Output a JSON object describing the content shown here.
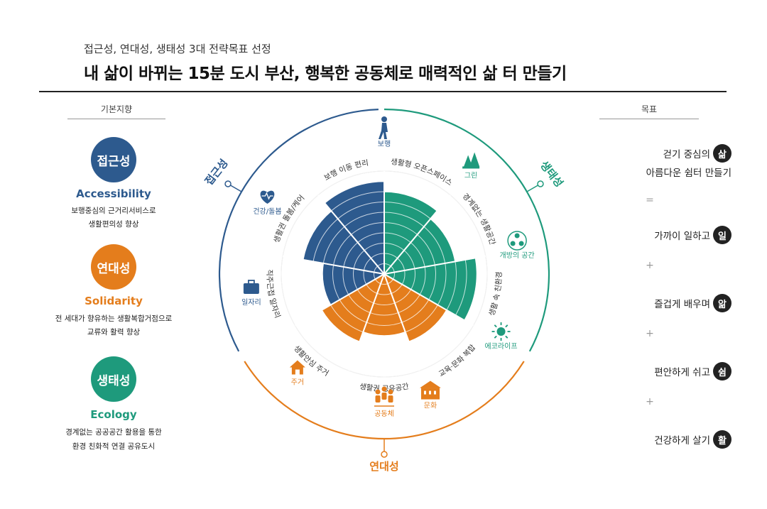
{
  "header": {
    "subtitle": "접근성, 연대성, 생태성 3대 전략목표 선정",
    "title": "내 삶이 바뀌는 15분 도시 부산, 행복한 공동체로 매력적인 삶 터 만들기"
  },
  "left": {
    "heading": "기본지향",
    "items": [
      {
        "badge": "접근성",
        "english": "Accessibility",
        "color": "#2d5a8e",
        "line1": "보행중심의 근거리서비스로",
        "line2": "생활편의성 향상"
      },
      {
        "badge": "연대성",
        "english": "Solidarity",
        "color": "#e47d1c",
        "line1": "전 세대가 향유하는 생활복합거점으로",
        "line2": "교류와 활력 향상"
      },
      {
        "badge": "생태성",
        "english": "Ecology",
        "color": "#1e9a7c",
        "line1": "경계없는 공공공간 활용을 통한",
        "line2": "환경 친화적 연결 공유도시"
      }
    ]
  },
  "right": {
    "heading": "목표",
    "goals": [
      {
        "line1": "걷기 중심의",
        "line2": "아름다운 쉼터 만들기",
        "badge": "삶"
      },
      {
        "text": "가까이 일하고",
        "badge": "일"
      },
      {
        "text": "즐겁게 배우며",
        "badge": "앎"
      },
      {
        "text": "편안하게 쉬고",
        "badge": "쉼"
      },
      {
        "text": "건강하게 살기",
        "badge": "활"
      }
    ],
    "separators": [
      "=",
      "+",
      "+",
      "+"
    ]
  },
  "diagram": {
    "arc_labels": {
      "left": "접근성",
      "right": "생태성",
      "bottom": "연대성"
    },
    "colors": {
      "access": "#2d5a8e",
      "eco": "#1e9a7c",
      "solidarity": "#e47d1c"
    },
    "outer_icons": [
      {
        "label": "보행",
        "icon": "walking-person-icon"
      },
      {
        "label": "그린",
        "icon": "trees-icon"
      },
      {
        "label": "개방의 공간",
        "icon": "people-network-icon"
      },
      {
        "label": "에코라이프",
        "icon": "sun-icon"
      },
      {
        "label": "문화",
        "icon": "school-building-icon"
      },
      {
        "label": "공동체",
        "icon": "community-people-icon"
      },
      {
        "label": "주거",
        "icon": "house-icon"
      },
      {
        "label": "일자리",
        "icon": "briefcase-icon"
      },
      {
        "label": "건강/돌봄",
        "icon": "heart-health-icon"
      }
    ],
    "sector_labels": [
      "생활형 오픈스페이스",
      "경계없는 생활공간",
      "생활 속 친환경",
      "교육·문화 복합",
      "생활권 공유공간",
      "생활안심 주거",
      "직주근접 일자리",
      "생활권 돌봄/케어",
      "보행 이동 편리"
    ]
  },
  "chart_data": {
    "type": "radial-bar",
    "categories": [
      "생활형 오픈스페이스",
      "경계없는 생활공간",
      "생활 속 친환경",
      "교육·문화 복합",
      "생활권 공유공간",
      "생활안심 주거",
      "직주근접 일자리",
      "생활권 돌봄/케어",
      "보행 이동 편리"
    ],
    "groups": [
      "생태성",
      "생태성",
      "생태성",
      "연대성",
      "연대성",
      "연대성",
      "접근성",
      "접근성",
      "접근성"
    ],
    "values": [
      8,
      7,
      9,
      7,
      6,
      7,
      6,
      8,
      9
    ],
    "max": 10
  }
}
